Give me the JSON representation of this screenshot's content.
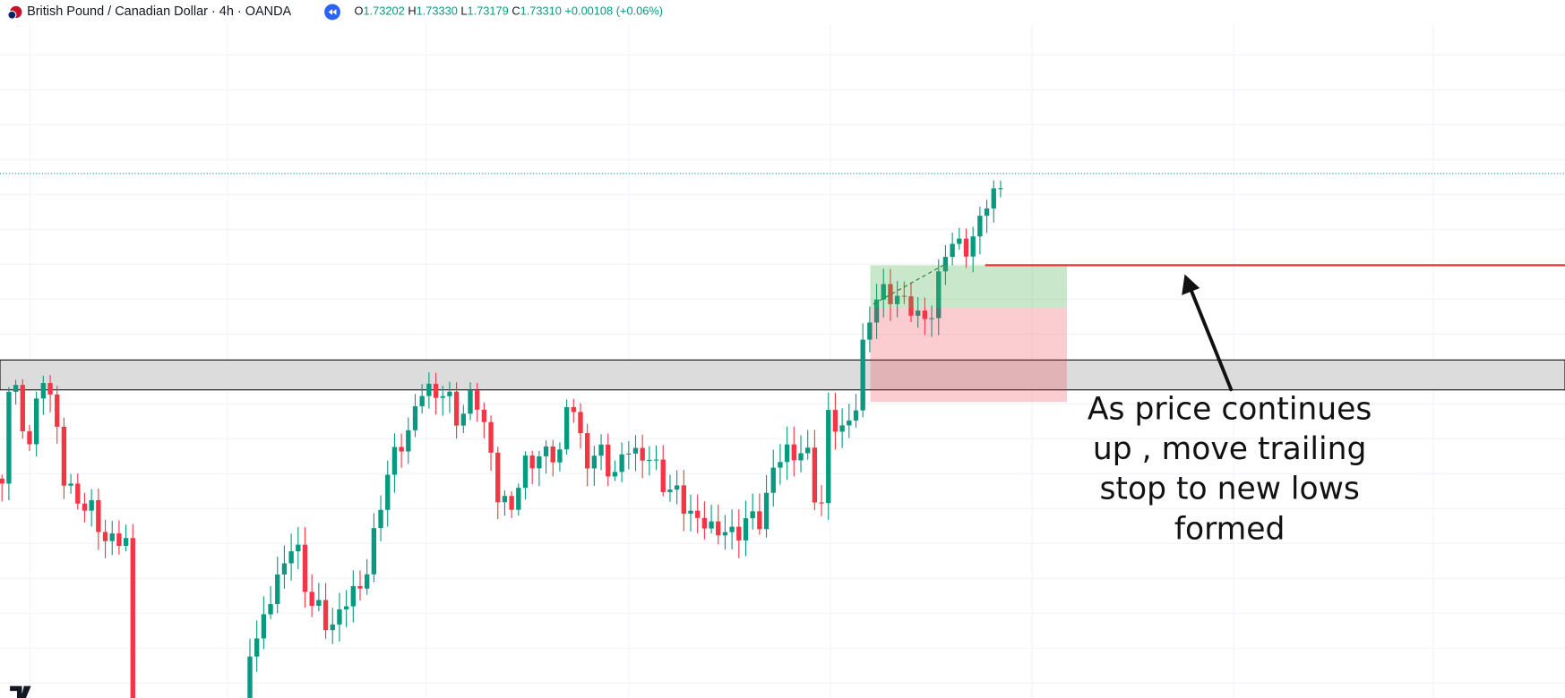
{
  "header": {
    "symbol": "British Pound / Canadian Dollar · 4h · OANDA",
    "ohlc": [
      {
        "label": "O",
        "value": "1.73202"
      },
      {
        "label": "H",
        "value": "1.73330"
      },
      {
        "label": "L",
        "value": "1.73179"
      },
      {
        "label": "C",
        "value": "1.73310"
      }
    ],
    "change": "+0.00108 (+0.06%)"
  },
  "annotation": {
    "lines": [
      "As price continues",
      "up , move trailing",
      "stop to new lows",
      "formed"
    ]
  }
}
